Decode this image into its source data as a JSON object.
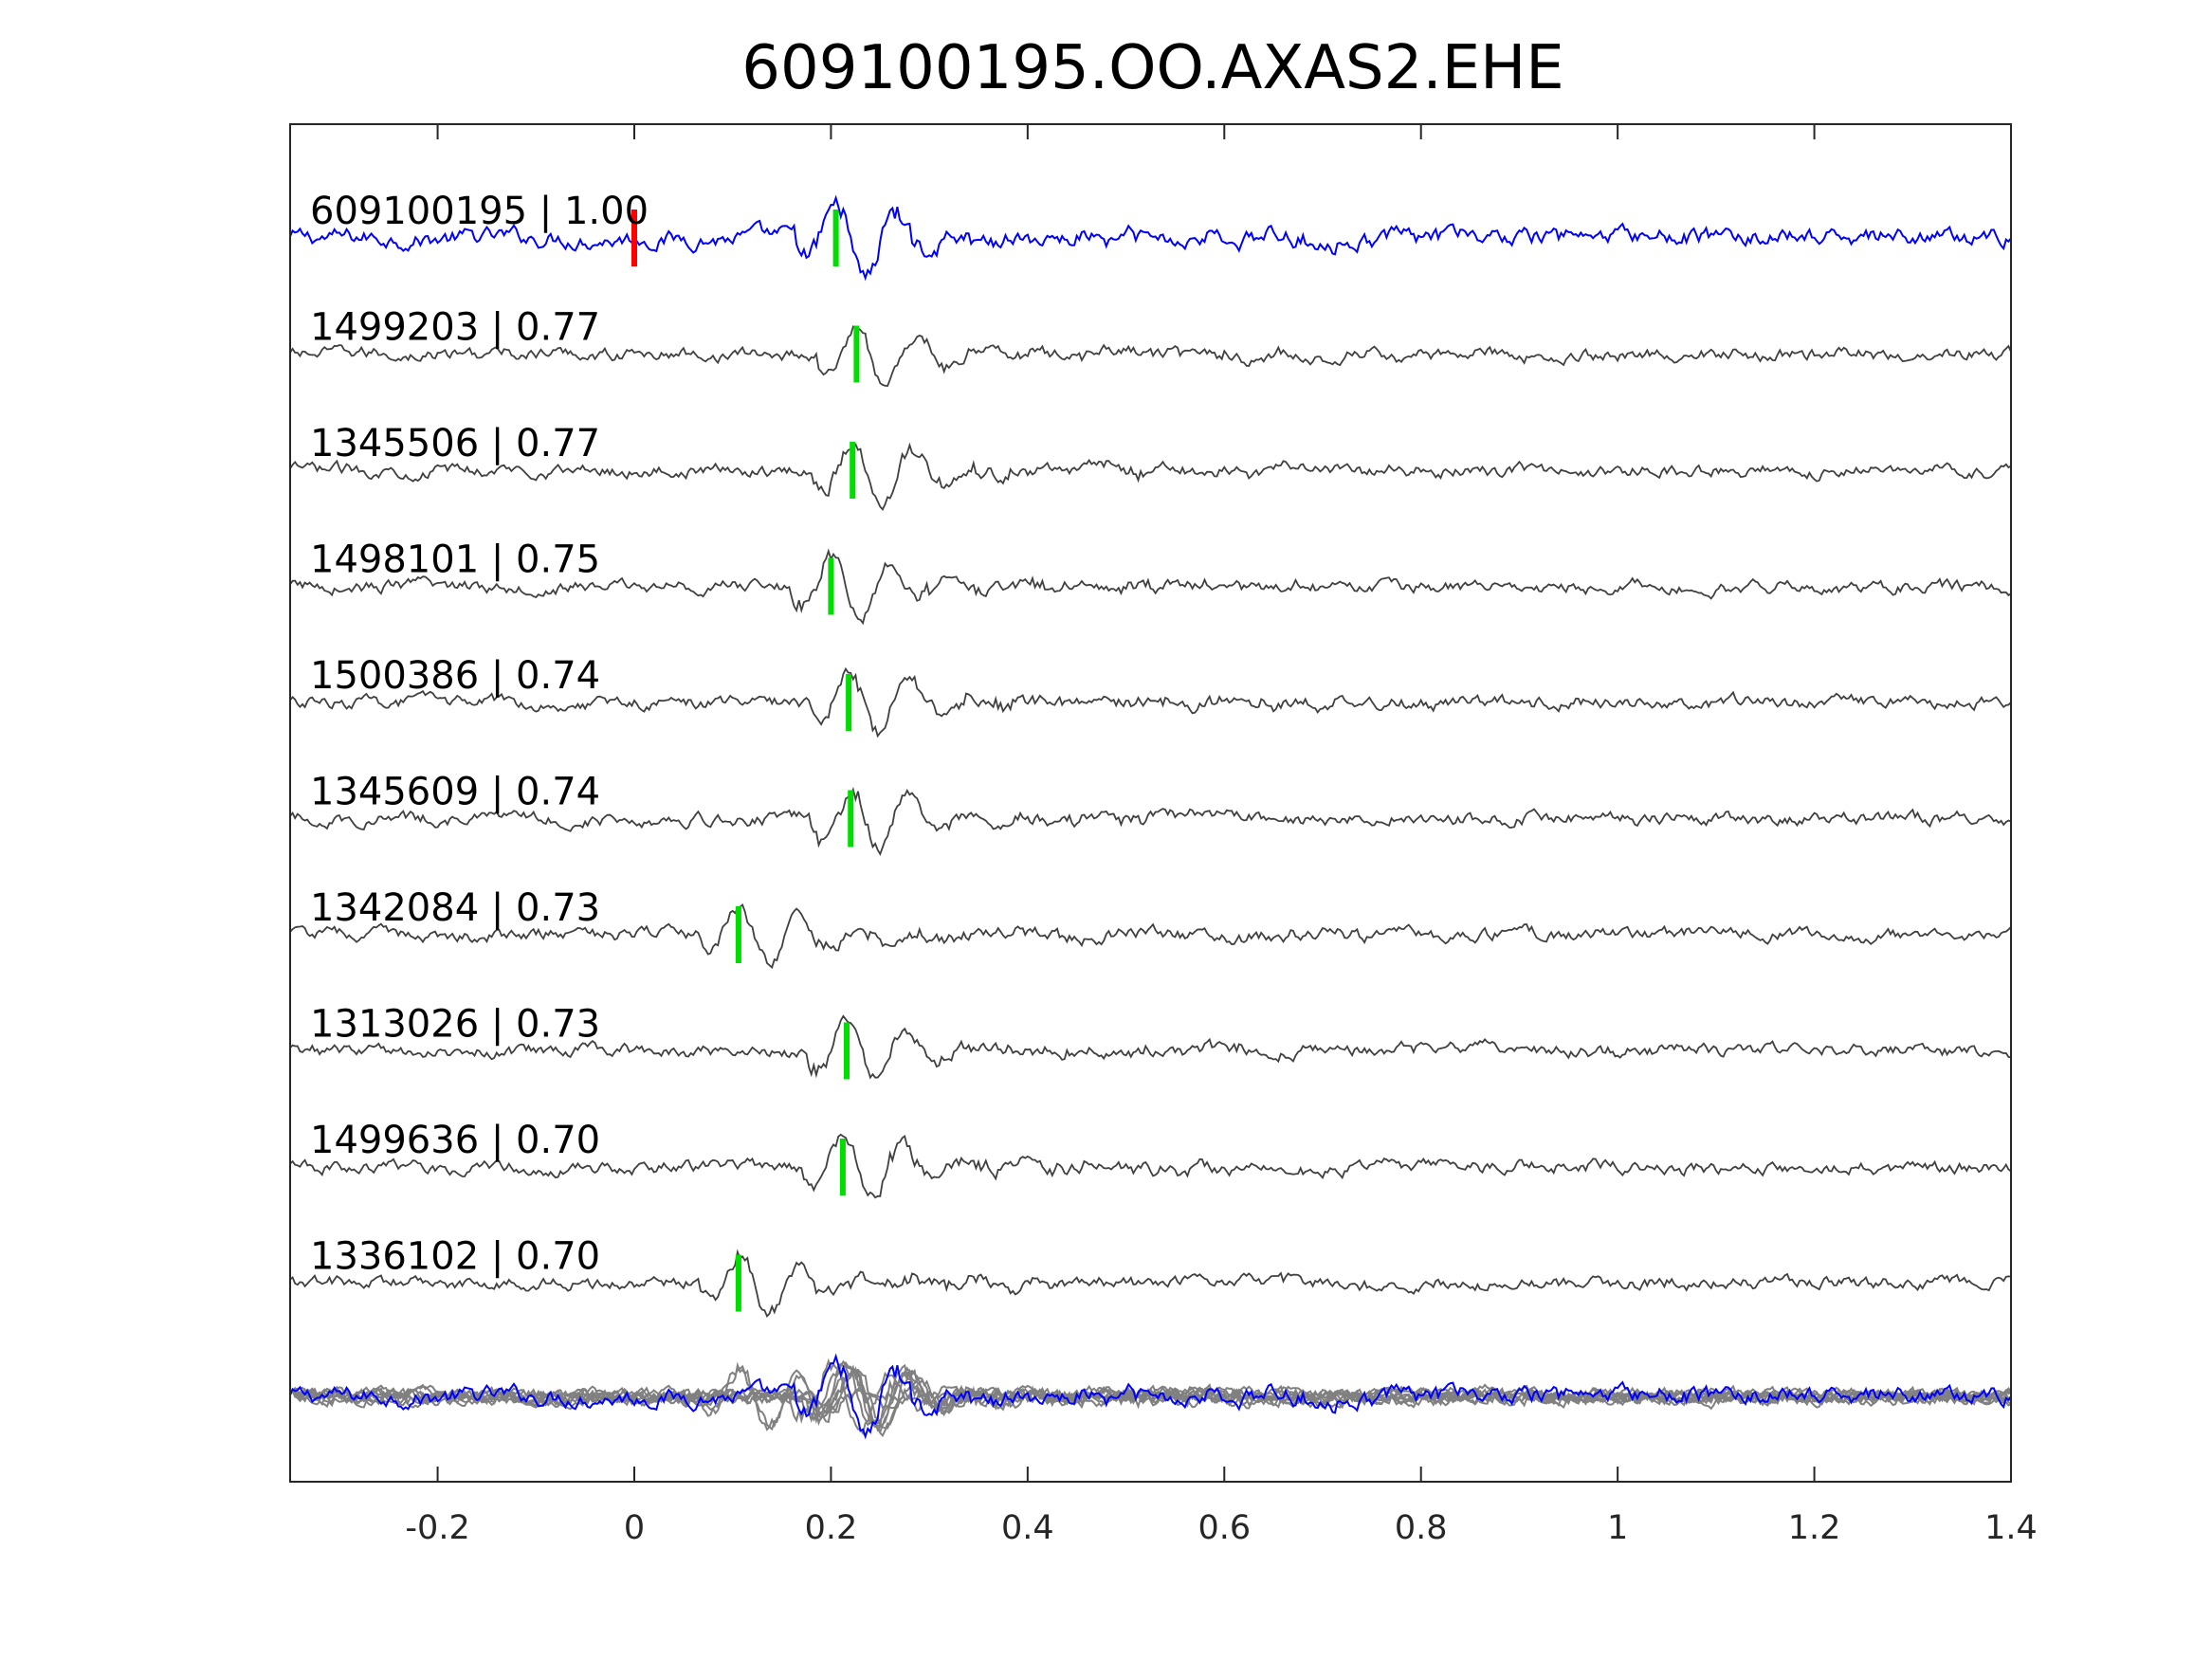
{
  "chart_data": {
    "type": "line",
    "title": "609100195.OO.AXAS2.EHE",
    "xlabel": "",
    "ylabel": "",
    "xlim": [
      -0.35,
      1.4
    ],
    "xticks": [
      -0.2,
      0,
      0.2,
      0.4,
      0.6,
      0.8,
      1,
      1.2,
      1.4
    ],
    "xtick_labels": [
      "-0.2",
      "0",
      "0.2",
      "0.4",
      "0.6",
      "0.8",
      "1",
      "1.2",
      "1.4"
    ],
    "grid": false,
    "colors": {
      "template": "#0000ff",
      "trace": "#404040",
      "overlay": "#808080",
      "origin_marker": "#ff0000",
      "pick_marker": "#00dd00"
    },
    "origin_marker_time": 0.0,
    "traces": [
      {
        "label": "609100195 | 1.00",
        "pick": 0.205,
        "template": true
      },
      {
        "label": "1499203 | 0.77",
        "pick": 0.226
      },
      {
        "label": "1345506 | 0.77",
        "pick": 0.222
      },
      {
        "label": "1498101 | 0.75",
        "pick": 0.2
      },
      {
        "label": "1500386 | 0.74",
        "pick": 0.218
      },
      {
        "label": "1345609 | 0.74",
        "pick": 0.22
      },
      {
        "label": "1342084 | 0.73",
        "pick": 0.106
      },
      {
        "label": "1313026 | 0.73",
        "pick": 0.216
      },
      {
        "label": "1499636 | 0.70",
        "pick": 0.212
      },
      {
        "label": "1336102 | 0.70",
        "pick": 0.106
      }
    ]
  }
}
